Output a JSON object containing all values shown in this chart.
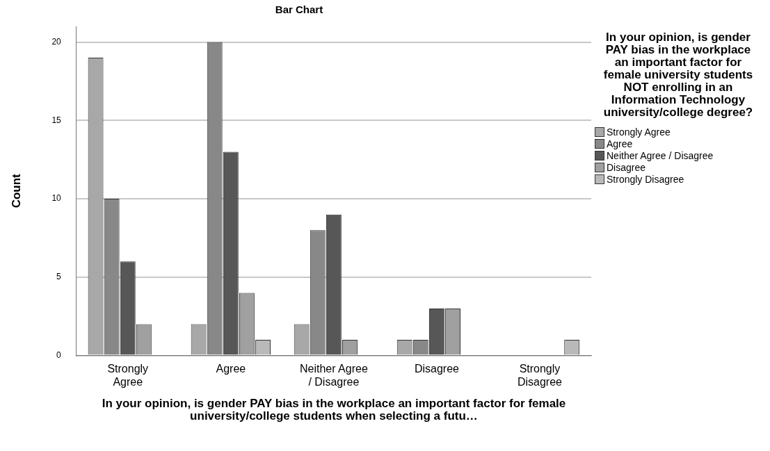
{
  "chart_data": {
    "type": "bar",
    "title": "Bar Chart",
    "xlabel": "In your opinion, is gender PAY bias in the workplace an important factor for female university/college students when selecting a futu…",
    "ylabel": "Count",
    "legend_title": "In your opinion, is gender PAY bias in the workplace an important factor for female university students NOT enrolling in an Information Technology university/college degree?",
    "categories": [
      "Strongly\nAgree",
      "Agree",
      "Neither Agree\n/ Disagree",
      "Disagree",
      "Strongly\nDisagree"
    ],
    "series": [
      {
        "name": "Strongly Agree",
        "color": "#a8a8a8",
        "values": [
          19,
          2,
          2,
          1,
          null
        ]
      },
      {
        "name": "Agree",
        "color": "#888888",
        "values": [
          10,
          20,
          8,
          1,
          null
        ]
      },
      {
        "name": "Neither Agree / Disagree",
        "color": "#575757",
        "values": [
          6,
          13,
          9,
          3,
          null
        ]
      },
      {
        "name": "Disagree",
        "color": "#a0a0a0",
        "values": [
          2,
          4,
          1,
          3,
          null
        ]
      },
      {
        "name": "Strongly Disagree",
        "color": "#b9b9b9",
        "values": [
          null,
          1,
          null,
          null,
          1
        ]
      }
    ],
    "ylim": [
      0,
      21
    ],
    "yticks": [
      0,
      5,
      10,
      15,
      20
    ],
    "grid": "y",
    "legend": "right"
  }
}
